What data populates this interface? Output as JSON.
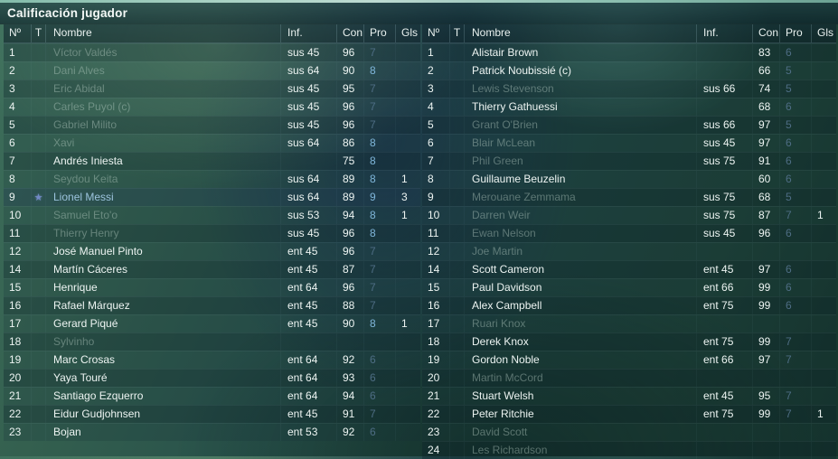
{
  "title": "Calificación jugador",
  "columns": {
    "num": "Nº",
    "t": "T",
    "name": "Nombre",
    "inf": "Inf.",
    "con": "Con",
    "pro": "Pro",
    "gls": "Gls"
  },
  "colors": {
    "text": "#edf4f2",
    "name_dim": "rgba(188,210,199,0.42)",
    "name_star": "#9cc3dd",
    "pro_high": "#7fb6da",
    "pro_low": "#4e6d84",
    "star_icon": "#7289c5"
  },
  "home_table": {
    "rows": [
      {
        "num": "1",
        "name": "Víctor Valdés",
        "inf": "sus 45",
        "con": "96",
        "pro": "7",
        "gls": "",
        "dim": true
      },
      {
        "num": "2",
        "name": "Dani Alves",
        "inf": "sus 64",
        "con": "90",
        "pro": "8",
        "gls": "",
        "dim": true
      },
      {
        "num": "3",
        "name": "Eric Abidal",
        "inf": "sus 45",
        "con": "95",
        "pro": "7",
        "gls": "",
        "dim": true
      },
      {
        "num": "4",
        "name": "Carles Puyol (c)",
        "inf": "sus 45",
        "con": "96",
        "pro": "7",
        "gls": "",
        "dim": true
      },
      {
        "num": "5",
        "name": "Gabriel Milito",
        "inf": "sus 45",
        "con": "96",
        "pro": "7",
        "gls": "",
        "dim": true
      },
      {
        "num": "6",
        "name": "Xavi",
        "inf": "sus 64",
        "con": "86",
        "pro": "8",
        "gls": "",
        "dim": true
      },
      {
        "num": "7",
        "name": "Andrés Iniesta",
        "inf": "",
        "con": "75",
        "pro": "8",
        "gls": "",
        "dim": false
      },
      {
        "num": "8",
        "name": "Seydou Keita",
        "inf": "sus 64",
        "con": "89",
        "pro": "8",
        "gls": "1",
        "dim": true
      },
      {
        "num": "9",
        "name": "Lionel Messi",
        "inf": "sus 64",
        "con": "89",
        "pro": "9",
        "gls": "3",
        "dim": false,
        "star": true
      },
      {
        "num": "10",
        "name": "Samuel Eto'o",
        "inf": "sus 53",
        "con": "94",
        "pro": "8",
        "gls": "1",
        "dim": true
      },
      {
        "num": "11",
        "name": "Thierry Henry",
        "inf": "sus 45",
        "con": "96",
        "pro": "8",
        "gls": "",
        "dim": true
      },
      {
        "num": "12",
        "name": "José Manuel Pinto",
        "inf": "ent 45",
        "con": "96",
        "pro": "7",
        "gls": "",
        "dim": false
      },
      {
        "num": "14",
        "name": "Martín Cáceres",
        "inf": "ent 45",
        "con": "87",
        "pro": "7",
        "gls": "",
        "dim": false
      },
      {
        "num": "15",
        "name": "Henrique",
        "inf": "ent 64",
        "con": "96",
        "pro": "7",
        "gls": "",
        "dim": false
      },
      {
        "num": "16",
        "name": "Rafael Márquez",
        "inf": "ent 45",
        "con": "88",
        "pro": "7",
        "gls": "",
        "dim": false
      },
      {
        "num": "17",
        "name": "Gerard Piqué",
        "inf": "ent 45",
        "con": "90",
        "pro": "8",
        "gls": "1",
        "dim": false
      },
      {
        "num": "18",
        "name": "Sylvinho",
        "inf": "",
        "con": "",
        "pro": "",
        "gls": "",
        "dim": true
      },
      {
        "num": "19",
        "name": "Marc Crosas",
        "inf": "ent 64",
        "con": "92",
        "pro": "6",
        "gls": "",
        "dim": false
      },
      {
        "num": "20",
        "name": "Yaya Touré",
        "inf": "ent 64",
        "con": "93",
        "pro": "6",
        "gls": "",
        "dim": false
      },
      {
        "num": "21",
        "name": "Santiago Ezquerro",
        "inf": "ent 64",
        "con": "94",
        "pro": "6",
        "gls": "",
        "dim": false
      },
      {
        "num": "22",
        "name": "Eidur Gudjohnsen",
        "inf": "ent 45",
        "con": "91",
        "pro": "7",
        "gls": "",
        "dim": false
      },
      {
        "num": "23",
        "name": "Bojan",
        "inf": "ent 53",
        "con": "92",
        "pro": "6",
        "gls": "",
        "dim": false
      }
    ]
  },
  "away_table": {
    "rows": [
      {
        "num": "1",
        "name": "Alistair Brown",
        "inf": "",
        "con": "83",
        "pro": "6",
        "gls": "",
        "dim": false
      },
      {
        "num": "2",
        "name": "Patrick Noubissié (c)",
        "inf": "",
        "con": "66",
        "pro": "5",
        "gls": "",
        "dim": false
      },
      {
        "num": "3",
        "name": "Lewis Stevenson",
        "inf": "sus 66",
        "con": "74",
        "pro": "5",
        "gls": "",
        "dim": true
      },
      {
        "num": "4",
        "name": "Thierry Gathuessi",
        "inf": "",
        "con": "68",
        "pro": "6",
        "gls": "",
        "dim": false
      },
      {
        "num": "5",
        "name": "Grant O'Brien",
        "inf": "sus 66",
        "con": "97",
        "pro": "5",
        "gls": "",
        "dim": true
      },
      {
        "num": "6",
        "name": "Blair McLean",
        "inf": "sus 45",
        "con": "97",
        "pro": "6",
        "gls": "",
        "dim": true
      },
      {
        "num": "7",
        "name": "Phil Green",
        "inf": "sus 75",
        "con": "91",
        "pro": "6",
        "gls": "",
        "dim": true
      },
      {
        "num": "8",
        "name": "Guillaume Beuzelin",
        "inf": "",
        "con": "60",
        "pro": "6",
        "gls": "",
        "dim": false
      },
      {
        "num": "9",
        "name": "Merouane Zemmama",
        "inf": "sus 75",
        "con": "68",
        "pro": "5",
        "gls": "",
        "dim": true
      },
      {
        "num": "10",
        "name": "Darren Weir",
        "inf": "sus 75",
        "con": "87",
        "pro": "7",
        "gls": "1",
        "dim": true
      },
      {
        "num": "11",
        "name": "Ewan Nelson",
        "inf": "sus 45",
        "con": "96",
        "pro": "6",
        "gls": "",
        "dim": true
      },
      {
        "num": "12",
        "name": "Joe Martin",
        "inf": "",
        "con": "",
        "pro": "",
        "gls": "",
        "dim": true
      },
      {
        "num": "14",
        "name": "Scott Cameron",
        "inf": "ent 45",
        "con": "97",
        "pro": "6",
        "gls": "",
        "dim": false
      },
      {
        "num": "15",
        "name": "Paul Davidson",
        "inf": "ent 66",
        "con": "99",
        "pro": "6",
        "gls": "",
        "dim": false
      },
      {
        "num": "16",
        "name": "Alex Campbell",
        "inf": "ent 75",
        "con": "99",
        "pro": "6",
        "gls": "",
        "dim": false
      },
      {
        "num": "17",
        "name": "Ruari Knox",
        "inf": "",
        "con": "",
        "pro": "",
        "gls": "",
        "dim": true
      },
      {
        "num": "18",
        "name": "Derek Knox",
        "inf": "ent 75",
        "con": "99",
        "pro": "7",
        "gls": "",
        "dim": false
      },
      {
        "num": "19",
        "name": "Gordon Noble",
        "inf": "ent 66",
        "con": "97",
        "pro": "7",
        "gls": "",
        "dim": false
      },
      {
        "num": "20",
        "name": "Martin McCord",
        "inf": "",
        "con": "",
        "pro": "",
        "gls": "",
        "dim": true
      },
      {
        "num": "21",
        "name": "Stuart Welsh",
        "inf": "ent 45",
        "con": "95",
        "pro": "7",
        "gls": "",
        "dim": false
      },
      {
        "num": "22",
        "name": "Peter Ritchie",
        "inf": "ent 75",
        "con": "99",
        "pro": "7",
        "gls": "1",
        "dim": false
      },
      {
        "num": "23",
        "name": "David Scott",
        "inf": "",
        "con": "",
        "pro": "",
        "gls": "",
        "dim": true
      },
      {
        "num": "24",
        "name": "Les Richardson",
        "inf": "",
        "con": "",
        "pro": "",
        "gls": "",
        "dim": true
      }
    ]
  }
}
